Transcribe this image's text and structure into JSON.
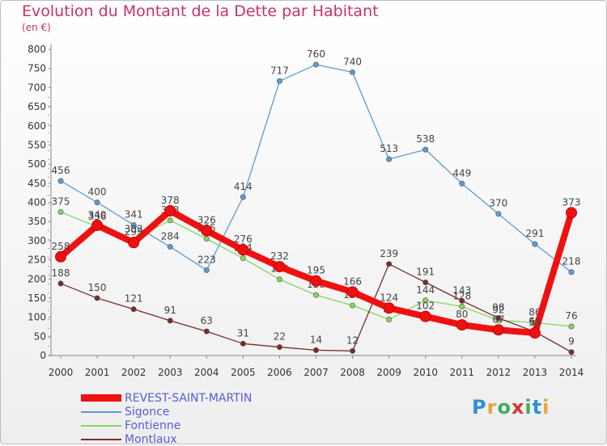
{
  "title": "Evolution du Montant de la Dette par Habitant",
  "subtitle": "(en €)",
  "logo": {
    "text": "Proxiti",
    "colors": [
      "#2f8fd8",
      "#e8a33b",
      "#3cb05e",
      "#d8372f",
      "#3cb05e",
      "#2f8fd8",
      "#e8a33b"
    ]
  },
  "chart_data": {
    "type": "line",
    "title": "Evolution du Montant de la Dette par Habitant",
    "subtitle": "(en €)",
    "x": [
      "2000",
      "2001",
      "2002",
      "2003",
      "2004",
      "2005",
      "2006",
      "2007",
      "2008",
      "2009",
      "2010",
      "2011",
      "2012",
      "2013",
      "2014"
    ],
    "ylim": [
      0,
      800
    ],
    "yticks": [
      "0",
      "50",
      "100",
      "150",
      "200",
      "250",
      "300",
      "350",
      "400",
      "450",
      "500",
      "550",
      "600",
      "650",
      "700",
      "750",
      "800"
    ],
    "grid": false,
    "legend_position": "bottom-left",
    "series": [
      {
        "name": "Sigonce",
        "color": "#5c9bd1",
        "values": [
          456,
          400,
          341,
          284,
          223,
          414,
          717,
          760,
          740,
          513,
          538,
          449,
          370,
          291,
          218
        ]
      },
      {
        "name": "Fontienne",
        "color": "#86d45f",
        "values": [
          375,
          336,
          303,
          353,
          305,
          254,
          199,
          158,
          131,
          94,
          144,
          128,
          92,
          86,
          76
        ]
      },
      {
        "name": "Montlaux",
        "color": "#7b2a2a",
        "values": [
          188,
          150,
          121,
          91,
          63,
          31,
          22,
          14,
          12,
          239,
          191,
          143,
          98,
          62,
          9
        ]
      },
      {
        "name": "REVEST-SAINT-MARTIN",
        "color": "#ee1111",
        "values": [
          258,
          340,
          295,
          378,
          326,
          276,
          232,
          195,
          166,
          124,
          102,
          80,
          67,
          59,
          373
        ]
      }
    ]
  }
}
